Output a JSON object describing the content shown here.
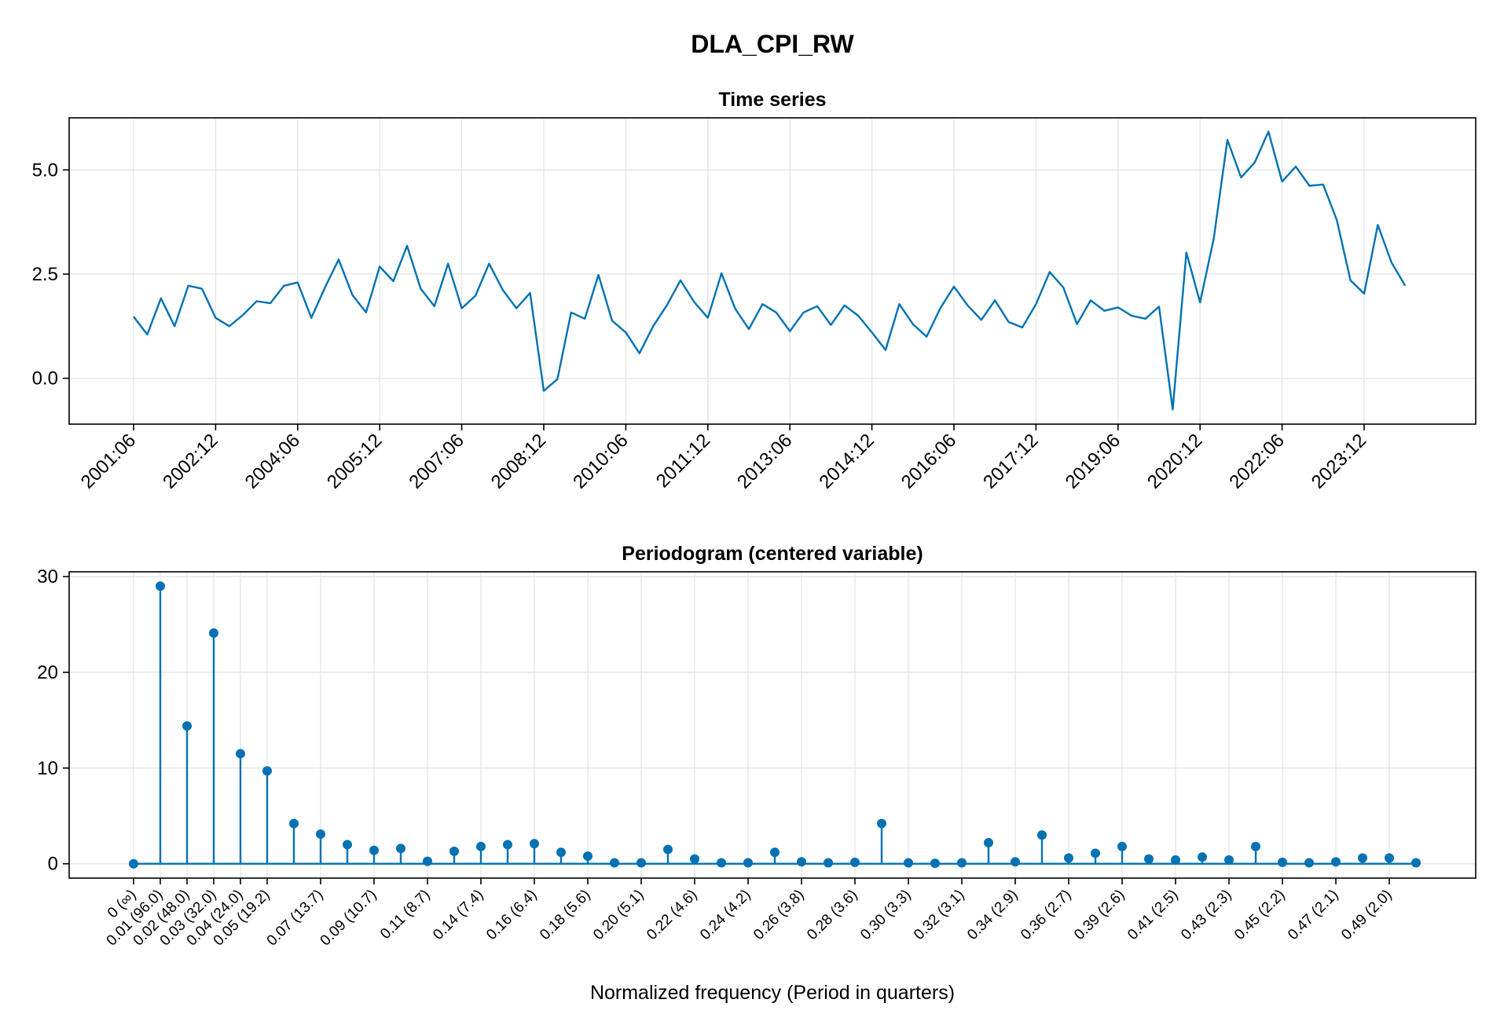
{
  "page_title": "DLA_CPI_RW",
  "chart_data": [
    {
      "type": "line",
      "title": "Time series",
      "xlabel": "",
      "ylabel": "",
      "grid": true,
      "color": "#0072b2",
      "x_tick_labels": [
        "2001:06",
        "2002:12",
        "2004:06",
        "2005:12",
        "2007:06",
        "2008:12",
        "2010:06",
        "2011:12",
        "2013:06",
        "2014:12",
        "2016:06",
        "2017:12",
        "2019:06",
        "2020:12",
        "2022:06",
        "2023:12"
      ],
      "y_tick_labels": [
        "0.0",
        "2.5",
        "5.0"
      ],
      "y_ticks": [
        0,
        2.5,
        5.0
      ],
      "ylim": [
        -1.1,
        6.25
      ],
      "x_start": "2001:06",
      "x_end": "2024:09",
      "frequency": "quarterly",
      "values": [
        1.48,
        1.05,
        1.92,
        1.25,
        2.22,
        2.15,
        1.45,
        1.25,
        1.52,
        1.85,
        1.8,
        2.22,
        2.3,
        1.45,
        2.18,
        2.85,
        2.0,
        1.58,
        2.68,
        2.33,
        3.18,
        2.15,
        1.73,
        2.75,
        1.68,
        1.98,
        2.75,
        2.12,
        1.68,
        2.05,
        -0.3,
        -0.02,
        1.58,
        1.43,
        2.48,
        1.38,
        1.1,
        0.6,
        1.25,
        1.75,
        2.35,
        1.83,
        1.45,
        2.52,
        1.67,
        1.18,
        1.78,
        1.58,
        1.13,
        1.58,
        1.73,
        1.28,
        1.75,
        1.5,
        1.1,
        0.68,
        1.78,
        1.3,
        1.0,
        1.68,
        2.2,
        1.75,
        1.4,
        1.87,
        1.35,
        1.22,
        1.78,
        2.55,
        2.18,
        1.3,
        1.87,
        1.62,
        1.7,
        1.5,
        1.43,
        1.72,
        -0.75,
        3.02,
        1.82,
        3.35,
        5.72,
        4.82,
        5.18,
        5.92,
        4.72,
        5.08,
        4.62,
        4.65,
        3.8,
        2.35,
        2.03,
        3.68,
        2.78,
        2.22
      ]
    },
    {
      "type": "stem",
      "title": "Periodogram (centered variable)",
      "xlabel": "Normalized frequency (Period in quarters)",
      "ylabel": "",
      "grid": true,
      "color": "#0072b2",
      "y_tick_labels": [
        "0",
        "10",
        "20",
        "30"
      ],
      "y_ticks": [
        0,
        10,
        20,
        30
      ],
      "ylim": [
        -1.5,
        30.5
      ],
      "x_tick_labels": [
        "0 (∞)",
        "0.01 (96.0)",
        "0.02 (48.0)",
        "0.03 (32.0)",
        "0.04 (24.0)",
        "0.05 (19.2)",
        "0.07 (13.7)",
        "0.09 (10.7)",
        "0.11 (8.7)",
        "0.14 (7.4)",
        "0.16 (6.4)",
        "0.18 (5.6)",
        "0.20 (5.1)",
        "0.22 (4.6)",
        "0.24 (4.2)",
        "0.26 (3.8)",
        "0.28 (3.6)",
        "0.30 (3.3)",
        "0.32 (3.1)",
        "0.34 (2.9)",
        "0.36 (2.7)",
        "0.39 (2.6)",
        "0.41 (2.5)",
        "0.43 (2.3)",
        "0.45 (2.2)",
        "0.47 (2.1)",
        "0.49 (2.0)"
      ],
      "values": [
        0.0,
        29.0,
        14.4,
        24.1,
        11.5,
        9.7,
        4.2,
        3.1,
        2.0,
        1.4,
        1.6,
        0.25,
        1.3,
        1.8,
        2.0,
        2.1,
        1.2,
        0.8,
        0.1,
        0.1,
        1.5,
        0.5,
        0.1,
        0.1,
        1.2,
        0.2,
        0.1,
        0.15,
        4.2,
        0.1,
        0.05,
        0.1,
        2.2,
        0.2,
        3.0,
        0.6,
        1.1,
        1.8,
        0.5,
        0.4,
        0.7,
        0.4,
        1.8,
        0.15,
        0.1,
        0.2,
        0.6,
        0.6,
        0.1
      ]
    }
  ]
}
